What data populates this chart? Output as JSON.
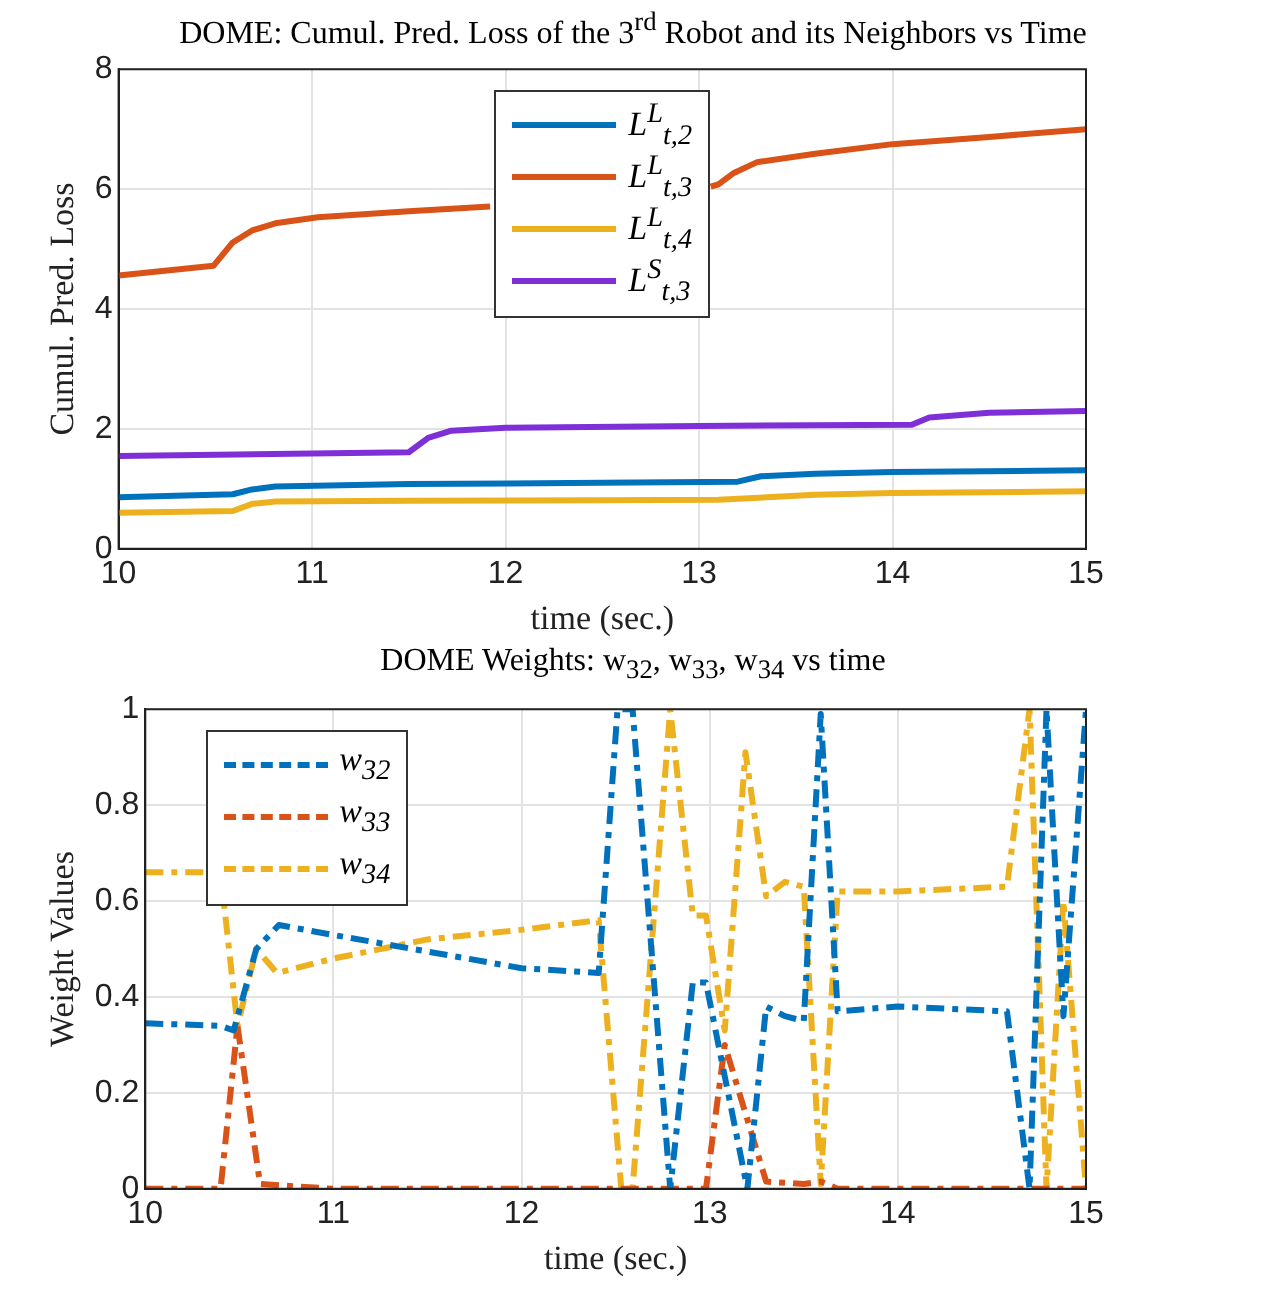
{
  "chart_data": [
    {
      "type": "line",
      "title": "DOME: Cumul. Pred. Loss of the 3$^{rd}$ Robot and its Neighbors vs Time",
      "xlabel": "time (sec.)",
      "ylabel": "Cumul. Pred. Loss",
      "xlim": [
        10,
        15
      ],
      "xticks": [
        10,
        11,
        12,
        13,
        14,
        15
      ],
      "ylim": [
        0,
        8
      ],
      "yticks": [
        0,
        2,
        4,
        6,
        8
      ],
      "grid": true,
      "legend": "top",
      "marker": "none",
      "line_style": "solid",
      "series": [
        {
          "name": "L$^{L}$$_{t,2}$",
          "color": "#0072bd",
          "x": [
            10,
            10.59,
            10.69,
            10.81,
            11.5,
            12.5,
            13.2,
            13.32,
            13.6,
            14,
            15
          ],
          "values": [
            0.86,
            0.91,
            0.99,
            1.04,
            1.08,
            1.1,
            1.12,
            1.21,
            1.25,
            1.28,
            1.31
          ]
        },
        {
          "name": "L$^{L}$$_{t,3}$",
          "color": "#d95319",
          "x": [
            10,
            10.49,
            10.59,
            10.69,
            10.81,
            11.03,
            11.5,
            11.92,
            12.4,
            13.06,
            13.1,
            13.18,
            13.3,
            13.6,
            14,
            14.5,
            15
          ],
          "values": [
            4.56,
            4.72,
            5.11,
            5.31,
            5.43,
            5.53,
            5.63,
            5.71,
            null,
            6.04,
            6.08,
            6.27,
            6.45,
            6.59,
            6.75,
            6.87,
            7.0
          ]
        },
        {
          "name": "L$^{L}$$_{t,4}$",
          "color": "#edb120",
          "x": [
            10,
            10.59,
            10.69,
            10.81,
            11.5,
            12.5,
            13.1,
            13.6,
            14,
            15
          ],
          "values": [
            0.6,
            0.63,
            0.75,
            0.79,
            0.8,
            0.81,
            0.82,
            0.9,
            0.93,
            0.96
          ]
        },
        {
          "name": "L$^{S}$$_{t,3}$",
          "color": "#7e2fd8",
          "x": [
            10,
            11.5,
            11.6,
            11.72,
            12,
            13,
            14.1,
            14.19,
            14.5,
            15
          ],
          "values": [
            1.55,
            1.61,
            1.85,
            1.97,
            2.02,
            2.05,
            2.07,
            2.19,
            2.27,
            2.3
          ]
        }
      ]
    },
    {
      "type": "line",
      "title": "DOME Weights: w$_{32}$, w$_{33}$, w$_{34}$ vs time",
      "xlabel": "time (sec.)",
      "ylabel": "Weight Values",
      "xlim": [
        10,
        15
      ],
      "xticks": [
        10,
        11,
        12,
        13,
        14,
        15
      ],
      "ylim": [
        0,
        1
      ],
      "yticks": [
        0,
        0.2,
        0.4,
        0.6,
        0.8,
        1
      ],
      "grid": true,
      "legend": "top left",
      "marker": "none",
      "line_style": "dashed",
      "series": [
        {
          "name": "w$_{32}$",
          "color": "#0072bd",
          "x": [
            10,
            10.4,
            10.47,
            10.59,
            10.71,
            10.99,
            12,
            12.41,
            12.51,
            12.59,
            12.79,
            12.91,
            12.98,
            13.2,
            13.3,
            13.4,
            13.5,
            13.59,
            13.68,
            14,
            14.58,
            14.7,
            14.79,
            14.88,
            15
          ],
          "values": [
            0.345,
            0.34,
            0.33,
            0.5,
            0.55,
            0.53,
            0.46,
            0.45,
            1.0,
            1.0,
            0,
            0.43,
            0.43,
            0,
            0.38,
            0.36,
            0.35,
            0.99,
            0.37,
            0.38,
            0.37,
            0,
            1.0,
            0.36,
            1.0
          ]
        },
        {
          "name": "w$_{33}$",
          "color": "#d95319",
          "x": [
            10,
            10.4,
            10.49,
            10.61,
            11,
            12.98,
            13.08,
            13.3,
            13.5,
            13.59,
            13.68,
            15
          ],
          "values": [
            0,
            0,
            0.34,
            0.01,
            0,
            0,
            0.3,
            0.015,
            0.01,
            0.015,
            0,
            0
          ]
        },
        {
          "name": "w$_{34}$",
          "color": "#edb120",
          "x": [
            10,
            10.4,
            10.49,
            10.59,
            10.7,
            11,
            11.5,
            12,
            12.41,
            12.53,
            12.59,
            12.79,
            12.91,
            12.98,
            13.08,
            13.19,
            13.3,
            13.4,
            13.5,
            13.59,
            13.68,
            14,
            14.58,
            14.7,
            14.79,
            14.88,
            15
          ],
          "values": [
            0.66,
            0.66,
            0.34,
            0.5,
            0.45,
            0.48,
            0.52,
            0.54,
            0.56,
            0,
            0,
            1.0,
            0.57,
            0.57,
            0.33,
            0.91,
            0.61,
            0.64,
            0.63,
            0.01,
            0.62,
            0.62,
            0.63,
            1.0,
            0,
            0.6,
            0
          ]
        }
      ]
    }
  ]
}
